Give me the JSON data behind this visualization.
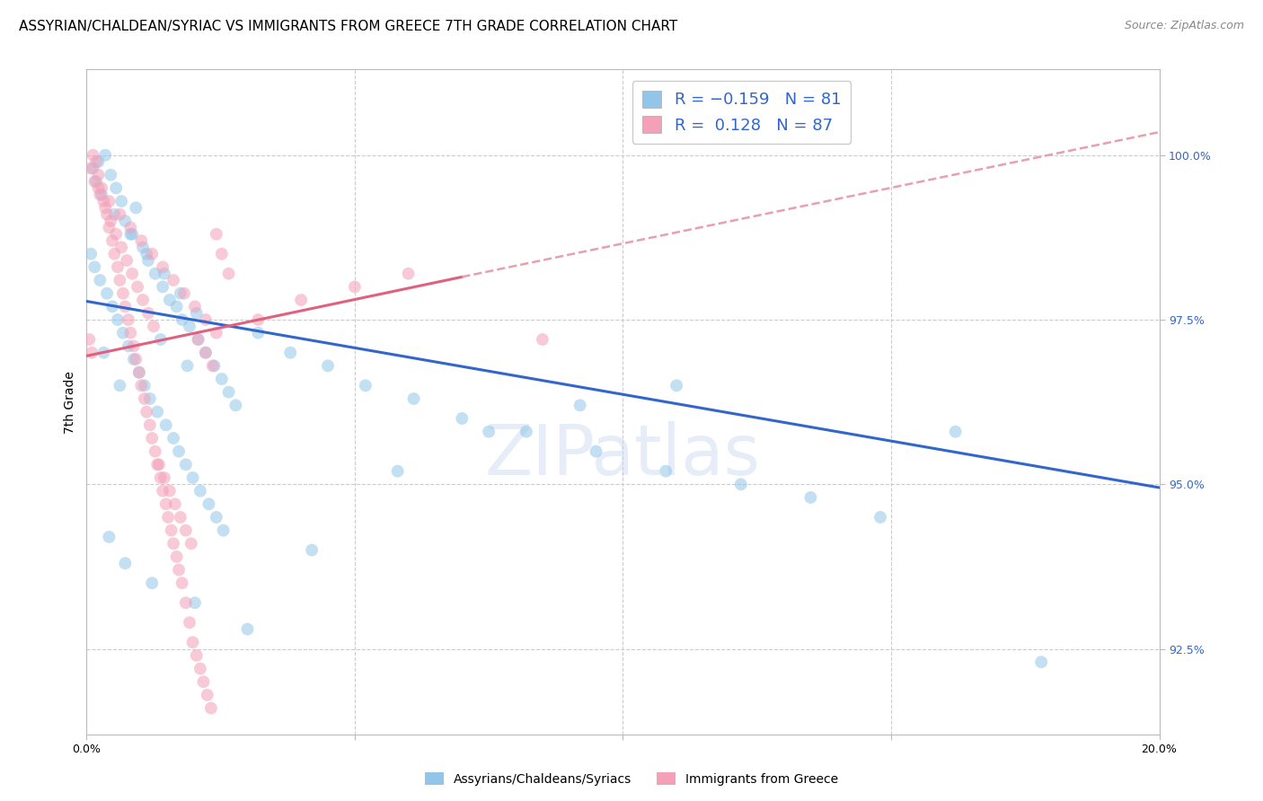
{
  "title": "ASSYRIAN/CHALDEAN/SYRIAC VS IMMIGRANTS FROM GREECE 7TH GRADE CORRELATION CHART",
  "source": "Source: ZipAtlas.com",
  "ylabel": "7th Grade",
  "xlim": [
    0.0,
    20.0
  ],
  "ylim": [
    91.2,
    101.3
  ],
  "yticks": [
    92.5,
    95.0,
    97.5,
    100.0
  ],
  "ytick_labels": [
    "92.5%",
    "95.0%",
    "97.5%",
    "100.0%"
  ],
  "xticks": [
    0.0,
    5.0,
    10.0,
    15.0,
    20.0
  ],
  "xtick_labels": [
    "0.0%",
    "",
    "",
    "",
    "20.0%"
  ],
  "blue_color": "#92C5E8",
  "pink_color": "#F4A0B8",
  "blue_line_color": "#3366CC",
  "pink_line_color": "#E06080",
  "pink_dash_color": "#E8A0B0",
  "legend_color_blue": "#92C5E8",
  "legend_color_pink": "#F4A0B8",
  "background_color": "#FFFFFF",
  "grid_color": "#CCCCCC",
  "dot_size": 100,
  "dot_alpha": 0.55,
  "blue_trend_x0": 0.0,
  "blue_trend_y0": 97.78,
  "blue_trend_x1": 20.0,
  "blue_trend_y1": 94.95,
  "pink_solid_x0": 0.0,
  "pink_solid_y0": 96.95,
  "pink_solid_x1": 7.0,
  "pink_solid_y1": 98.15,
  "pink_dash_x0": 7.0,
  "pink_dash_y0": 98.15,
  "pink_dash_x1": 20.0,
  "pink_dash_y1": 100.35,
  "title_fontsize": 11,
  "source_fontsize": 9,
  "axis_label_fontsize": 10,
  "tick_fontsize": 9,
  "legend_fontsize": 13,
  "watermark": "ZIPatlas",
  "watermark_color": "#C8D8F0",
  "blue_scatter_x": [
    0.12,
    0.18,
    0.22,
    0.35,
    0.45,
    0.55,
    0.65,
    0.72,
    0.85,
    0.92,
    1.05,
    1.15,
    1.28,
    1.42,
    1.55,
    1.68,
    1.78,
    1.92,
    2.08,
    2.22,
    2.38,
    2.52,
    2.65,
    2.78,
    0.08,
    0.15,
    0.25,
    0.38,
    0.48,
    0.58,
    0.68,
    0.78,
    0.88,
    0.98,
    1.08,
    1.18,
    1.32,
    1.48,
    1.62,
    1.72,
    1.85,
    1.98,
    2.12,
    2.28,
    2.42,
    2.55,
    0.32,
    0.62,
    1.38,
    1.88,
    3.2,
    3.8,
    4.5,
    5.2,
    6.1,
    7.0,
    8.2,
    9.5,
    10.8,
    12.2,
    13.5,
    14.8,
    16.2,
    0.42,
    0.72,
    1.22,
    2.02,
    3.0,
    4.2,
    5.8,
    7.5,
    9.2,
    11.0,
    17.8,
    0.28,
    0.52,
    0.82,
    1.12,
    1.45,
    1.75,
    2.05
  ],
  "blue_scatter_y": [
    99.8,
    99.6,
    99.9,
    100.0,
    99.7,
    99.5,
    99.3,
    99.0,
    98.8,
    99.2,
    98.6,
    98.4,
    98.2,
    98.0,
    97.8,
    97.7,
    97.5,
    97.4,
    97.2,
    97.0,
    96.8,
    96.6,
    96.4,
    96.2,
    98.5,
    98.3,
    98.1,
    97.9,
    97.7,
    97.5,
    97.3,
    97.1,
    96.9,
    96.7,
    96.5,
    96.3,
    96.1,
    95.9,
    95.7,
    95.5,
    95.3,
    95.1,
    94.9,
    94.7,
    94.5,
    94.3,
    97.0,
    96.5,
    97.2,
    96.8,
    97.3,
    97.0,
    96.8,
    96.5,
    96.3,
    96.0,
    95.8,
    95.5,
    95.2,
    95.0,
    94.8,
    94.5,
    95.8,
    94.2,
    93.8,
    93.5,
    93.2,
    92.8,
    94.0,
    95.2,
    95.8,
    96.2,
    96.5,
    92.3,
    99.4,
    99.1,
    98.8,
    98.5,
    98.2,
    97.9,
    97.6
  ],
  "pink_scatter_x": [
    0.08,
    0.12,
    0.18,
    0.22,
    0.28,
    0.32,
    0.38,
    0.42,
    0.48,
    0.52,
    0.58,
    0.62,
    0.68,
    0.72,
    0.78,
    0.82,
    0.88,
    0.92,
    0.98,
    1.02,
    1.08,
    1.12,
    1.18,
    1.22,
    1.28,
    1.32,
    1.38,
    1.42,
    1.48,
    1.52,
    1.58,
    1.62,
    1.68,
    1.72,
    1.78,
    1.85,
    1.92,
    1.98,
    2.05,
    2.12,
    2.18,
    2.25,
    2.32,
    2.42,
    2.52,
    2.65,
    0.15,
    0.25,
    0.35,
    0.45,
    0.55,
    0.65,
    0.75,
    0.85,
    0.95,
    1.05,
    1.15,
    1.25,
    0.05,
    0.1,
    3.2,
    4.0,
    5.0,
    6.0,
    8.5,
    1.35,
    1.45,
    1.55,
    1.65,
    1.75,
    1.85,
    1.95,
    2.08,
    2.22,
    2.35,
    0.22,
    0.42,
    0.62,
    0.82,
    1.02,
    1.22,
    1.42,
    1.62,
    1.82,
    2.02,
    2.22,
    2.42
  ],
  "pink_scatter_y": [
    99.8,
    100.0,
    99.9,
    99.7,
    99.5,
    99.3,
    99.1,
    98.9,
    98.7,
    98.5,
    98.3,
    98.1,
    97.9,
    97.7,
    97.5,
    97.3,
    97.1,
    96.9,
    96.7,
    96.5,
    96.3,
    96.1,
    95.9,
    95.7,
    95.5,
    95.3,
    95.1,
    94.9,
    94.7,
    94.5,
    94.3,
    94.1,
    93.9,
    93.7,
    93.5,
    93.2,
    92.9,
    92.6,
    92.4,
    92.2,
    92.0,
    91.8,
    91.6,
    98.8,
    98.5,
    98.2,
    99.6,
    99.4,
    99.2,
    99.0,
    98.8,
    98.6,
    98.4,
    98.2,
    98.0,
    97.8,
    97.6,
    97.4,
    97.2,
    97.0,
    97.5,
    97.8,
    98.0,
    98.2,
    97.2,
    95.3,
    95.1,
    94.9,
    94.7,
    94.5,
    94.3,
    94.1,
    97.2,
    97.0,
    96.8,
    99.5,
    99.3,
    99.1,
    98.9,
    98.7,
    98.5,
    98.3,
    98.1,
    97.9,
    97.7,
    97.5,
    97.3
  ]
}
